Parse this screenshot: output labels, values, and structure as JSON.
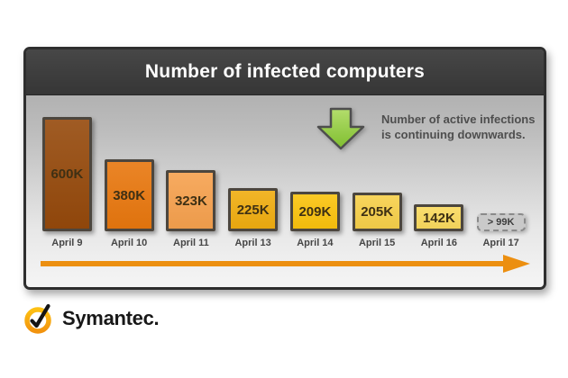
{
  "header": {
    "title": "Number of infected computers"
  },
  "annotation": {
    "line1": "Number of active infections",
    "line2": "is continuing downwards.",
    "arrow_color": "#8dc63f"
  },
  "chart_data": {
    "type": "bar",
    "title": "Number of infected computers",
    "categories": [
      "April 9",
      "April 10",
      "April 11",
      "April 13",
      "April 14",
      "April 15",
      "April 16",
      "April 17"
    ],
    "values": [
      600000,
      380000,
      323000,
      225000,
      209000,
      205000,
      142000,
      99000
    ],
    "value_labels": [
      "600K",
      "380K",
      "323K",
      "225K",
      "209K",
      "205K",
      "142K",
      "> 99K"
    ],
    "bar_colors": [
      "#95490b",
      "#e8770e",
      "#f6a14e",
      "#f0ad10",
      "#fbc30d",
      "#f7d04a",
      "#fada5e",
      "#c9c9c9"
    ],
    "estimated": [
      false,
      false,
      false,
      false,
      false,
      false,
      false,
      true
    ],
    "ylim": [
      0,
      600000
    ],
    "xlabel": "",
    "ylabel": "",
    "grid": false,
    "legend": false,
    "timeline_arrow_color": "#ec8f10",
    "note": "Last value (April 17) shown as dashed estimate box"
  },
  "footer": {
    "brand": "Symantec."
  }
}
